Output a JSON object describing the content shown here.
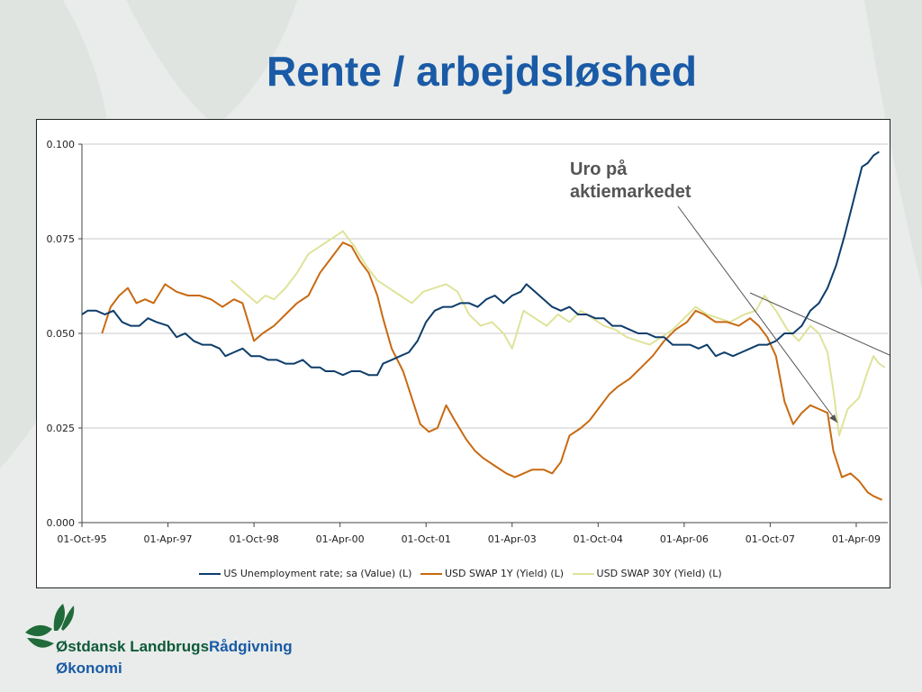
{
  "slide": {
    "title": "Rente / arbejdsløshed",
    "annotation": "Uro på aktiemarkedet",
    "company": {
      "name_part1": "Østdansk Landbrugs",
      "name_part2": "Rådgivning",
      "line2": "Økonomi"
    },
    "colors": {
      "title": "#1a5aa6",
      "company_green": "#0e5a3a",
      "company_blue": "#1a5aa6",
      "logo_green": "#1f6b3a"
    }
  },
  "chart_data": {
    "type": "line",
    "title": "",
    "xlabel": "",
    "ylabel": "",
    "x_tick_labels": [
      "01-Oct-95",
      "01-Apr-97",
      "01-Oct-98",
      "01-Apr-00",
      "01-Oct-01",
      "01-Apr-03",
      "01-Oct-04",
      "01-Apr-06",
      "01-Oct-07",
      "01-Apr-09"
    ],
    "x_tick_years": [
      1995.75,
      1997.25,
      1998.75,
      2000.25,
      2001.75,
      2003.25,
      2004.75,
      2006.25,
      2007.75,
      2009.25
    ],
    "xlim": [
      1995.75,
      2009.8
    ],
    "y_tick_labels": [
      "0.000",
      "0.025",
      "0.050",
      "0.075",
      "0.100"
    ],
    "ylim": [
      0,
      0.1
    ],
    "grid": true,
    "legend_position": "bottom",
    "series": [
      {
        "name": "US Unemployment rate; sa (Value) (L)",
        "color": "#0e3d6b",
        "points": [
          [
            1995.75,
            0.055
          ],
          [
            1995.85,
            0.056
          ],
          [
            1996.0,
            0.056
          ],
          [
            1996.15,
            0.055
          ],
          [
            1996.3,
            0.056
          ],
          [
            1996.45,
            0.053
          ],
          [
            1996.6,
            0.052
          ],
          [
            1996.75,
            0.052
          ],
          [
            1996.9,
            0.054
          ],
          [
            1997.05,
            0.053
          ],
          [
            1997.25,
            0.052
          ],
          [
            1997.4,
            0.049
          ],
          [
            1997.55,
            0.05
          ],
          [
            1997.7,
            0.048
          ],
          [
            1997.85,
            0.047
          ],
          [
            1998.0,
            0.047
          ],
          [
            1998.15,
            0.046
          ],
          [
            1998.25,
            0.044
          ],
          [
            1998.4,
            0.045
          ],
          [
            1998.55,
            0.046
          ],
          [
            1998.7,
            0.044
          ],
          [
            1998.85,
            0.044
          ],
          [
            1999.0,
            0.043
          ],
          [
            1999.15,
            0.043
          ],
          [
            1999.3,
            0.042
          ],
          [
            1999.45,
            0.042
          ],
          [
            1999.6,
            0.043
          ],
          [
            1999.75,
            0.041
          ],
          [
            1999.9,
            0.041
          ],
          [
            2000.0,
            0.04
          ],
          [
            2000.15,
            0.04
          ],
          [
            2000.3,
            0.039
          ],
          [
            2000.45,
            0.04
          ],
          [
            2000.6,
            0.04
          ],
          [
            2000.75,
            0.039
          ],
          [
            2000.9,
            0.039
          ],
          [
            2001.0,
            0.042
          ],
          [
            2001.15,
            0.043
          ],
          [
            2001.3,
            0.044
          ],
          [
            2001.45,
            0.045
          ],
          [
            2001.6,
            0.048
          ],
          [
            2001.75,
            0.053
          ],
          [
            2001.9,
            0.056
          ],
          [
            2002.05,
            0.057
          ],
          [
            2002.2,
            0.057
          ],
          [
            2002.35,
            0.058
          ],
          [
            2002.5,
            0.058
          ],
          [
            2002.65,
            0.057
          ],
          [
            2002.8,
            0.059
          ],
          [
            2002.95,
            0.06
          ],
          [
            2003.1,
            0.058
          ],
          [
            2003.25,
            0.06
          ],
          [
            2003.4,
            0.061
          ],
          [
            2003.5,
            0.063
          ],
          [
            2003.65,
            0.061
          ],
          [
            2003.8,
            0.059
          ],
          [
            2003.95,
            0.057
          ],
          [
            2004.1,
            0.056
          ],
          [
            2004.25,
            0.057
          ],
          [
            2004.4,
            0.055
          ],
          [
            2004.55,
            0.055
          ],
          [
            2004.7,
            0.054
          ],
          [
            2004.85,
            0.054
          ],
          [
            2005.0,
            0.052
          ],
          [
            2005.15,
            0.052
          ],
          [
            2005.3,
            0.051
          ],
          [
            2005.45,
            0.05
          ],
          [
            2005.6,
            0.05
          ],
          [
            2005.75,
            0.049
          ],
          [
            2005.9,
            0.049
          ],
          [
            2006.05,
            0.047
          ],
          [
            2006.2,
            0.047
          ],
          [
            2006.35,
            0.047
          ],
          [
            2006.5,
            0.046
          ],
          [
            2006.65,
            0.047
          ],
          [
            2006.8,
            0.044
          ],
          [
            2006.95,
            0.045
          ],
          [
            2007.1,
            0.044
          ],
          [
            2007.25,
            0.045
          ],
          [
            2007.4,
            0.046
          ],
          [
            2007.55,
            0.047
          ],
          [
            2007.7,
            0.047
          ],
          [
            2007.85,
            0.048
          ],
          [
            2008.0,
            0.05
          ],
          [
            2008.15,
            0.05
          ],
          [
            2008.3,
            0.052
          ],
          [
            2008.45,
            0.056
          ],
          [
            2008.6,
            0.058
          ],
          [
            2008.75,
            0.062
          ],
          [
            2008.9,
            0.068
          ],
          [
            2009.05,
            0.076
          ],
          [
            2009.2,
            0.085
          ],
          [
            2009.35,
            0.094
          ],
          [
            2009.45,
            0.095
          ],
          [
            2009.55,
            0.097
          ],
          [
            2009.65,
            0.098
          ]
        ]
      },
      {
        "name": "USD SWAP 1Y (Yield) (L)",
        "color": "#c86a12",
        "points": [
          [
            1996.1,
            0.05
          ],
          [
            1996.25,
            0.057
          ],
          [
            1996.4,
            0.06
          ],
          [
            1996.55,
            0.062
          ],
          [
            1996.7,
            0.058
          ],
          [
            1996.85,
            0.059
          ],
          [
            1997.0,
            0.058
          ],
          [
            1997.2,
            0.063
          ],
          [
            1997.4,
            0.061
          ],
          [
            1997.6,
            0.06
          ],
          [
            1997.8,
            0.06
          ],
          [
            1998.0,
            0.059
          ],
          [
            1998.2,
            0.057
          ],
          [
            1998.4,
            0.059
          ],
          [
            1998.55,
            0.058
          ],
          [
            1998.75,
            0.048
          ],
          [
            1998.9,
            0.05
          ],
          [
            1999.1,
            0.052
          ],
          [
            1999.3,
            0.055
          ],
          [
            1999.5,
            0.058
          ],
          [
            1999.7,
            0.06
          ],
          [
            1999.9,
            0.066
          ],
          [
            2000.1,
            0.07
          ],
          [
            2000.3,
            0.074
          ],
          [
            2000.45,
            0.073
          ],
          [
            2000.6,
            0.069
          ],
          [
            2000.75,
            0.066
          ],
          [
            2000.9,
            0.06
          ],
          [
            2001.0,
            0.054
          ],
          [
            2001.15,
            0.046
          ],
          [
            2001.35,
            0.04
          ],
          [
            2001.5,
            0.033
          ],
          [
            2001.65,
            0.026
          ],
          [
            2001.8,
            0.024
          ],
          [
            2001.95,
            0.025
          ],
          [
            2002.1,
            0.031
          ],
          [
            2002.25,
            0.027
          ],
          [
            2002.45,
            0.022
          ],
          [
            2002.6,
            0.019
          ],
          [
            2002.75,
            0.017
          ],
          [
            2002.95,
            0.015
          ],
          [
            2003.15,
            0.013
          ],
          [
            2003.3,
            0.012
          ],
          [
            2003.45,
            0.013
          ],
          [
            2003.6,
            0.014
          ],
          [
            2003.8,
            0.014
          ],
          [
            2003.95,
            0.013
          ],
          [
            2004.1,
            0.016
          ],
          [
            2004.25,
            0.023
          ],
          [
            2004.45,
            0.025
          ],
          [
            2004.6,
            0.027
          ],
          [
            2004.75,
            0.03
          ],
          [
            2004.95,
            0.034
          ],
          [
            2005.1,
            0.036
          ],
          [
            2005.3,
            0.038
          ],
          [
            2005.5,
            0.041
          ],
          [
            2005.7,
            0.044
          ],
          [
            2005.9,
            0.048
          ],
          [
            2006.1,
            0.051
          ],
          [
            2006.3,
            0.053
          ],
          [
            2006.45,
            0.056
          ],
          [
            2006.6,
            0.055
          ],
          [
            2006.8,
            0.053
          ],
          [
            2007.0,
            0.053
          ],
          [
            2007.2,
            0.052
          ],
          [
            2007.4,
            0.054
          ],
          [
            2007.55,
            0.052
          ],
          [
            2007.7,
            0.049
          ],
          [
            2007.85,
            0.044
          ],
          [
            2008.0,
            0.032
          ],
          [
            2008.15,
            0.026
          ],
          [
            2008.3,
            0.029
          ],
          [
            2008.45,
            0.031
          ],
          [
            2008.6,
            0.03
          ],
          [
            2008.75,
            0.029
          ],
          [
            2008.85,
            0.019
          ],
          [
            2009.0,
            0.012
          ],
          [
            2009.15,
            0.013
          ],
          [
            2009.3,
            0.011
          ],
          [
            2009.45,
            0.008
          ],
          [
            2009.55,
            0.007
          ],
          [
            2009.7,
            0.006
          ]
        ]
      },
      {
        "name": "USD SWAP 30Y (Yield) (L)",
        "color": "#dfe39a",
        "points": [
          [
            1998.35,
            0.064
          ],
          [
            1998.5,
            0.062
          ],
          [
            1998.65,
            0.06
          ],
          [
            1998.8,
            0.058
          ],
          [
            1998.95,
            0.06
          ],
          [
            1999.1,
            0.059
          ],
          [
            1999.3,
            0.062
          ],
          [
            1999.5,
            0.066
          ],
          [
            1999.7,
            0.071
          ],
          [
            1999.9,
            0.073
          ],
          [
            2000.1,
            0.075
          ],
          [
            2000.3,
            0.077
          ],
          [
            2000.5,
            0.073
          ],
          [
            2000.7,
            0.068
          ],
          [
            2000.9,
            0.064
          ],
          [
            2001.1,
            0.062
          ],
          [
            2001.3,
            0.06
          ],
          [
            2001.5,
            0.058
          ],
          [
            2001.7,
            0.061
          ],
          [
            2001.9,
            0.062
          ],
          [
            2002.1,
            0.063
          ],
          [
            2002.3,
            0.061
          ],
          [
            2002.5,
            0.055
          ],
          [
            2002.7,
            0.052
          ],
          [
            2002.9,
            0.053
          ],
          [
            2003.1,
            0.05
          ],
          [
            2003.25,
            0.046
          ],
          [
            2003.45,
            0.056
          ],
          [
            2003.65,
            0.054
          ],
          [
            2003.85,
            0.052
          ],
          [
            2004.05,
            0.055
          ],
          [
            2004.25,
            0.053
          ],
          [
            2004.45,
            0.056
          ],
          [
            2004.65,
            0.054
          ],
          [
            2004.85,
            0.052
          ],
          [
            2005.05,
            0.051
          ],
          [
            2005.25,
            0.049
          ],
          [
            2005.45,
            0.048
          ],
          [
            2005.65,
            0.047
          ],
          [
            2005.85,
            0.049
          ],
          [
            2006.05,
            0.051
          ],
          [
            2006.25,
            0.054
          ],
          [
            2006.45,
            0.057
          ],
          [
            2006.65,
            0.055
          ],
          [
            2006.85,
            0.054
          ],
          [
            2007.05,
            0.053
          ],
          [
            2007.3,
            0.055
          ],
          [
            2007.5,
            0.056
          ],
          [
            2007.65,
            0.06
          ],
          [
            2007.85,
            0.056
          ],
          [
            2008.05,
            0.051
          ],
          [
            2008.25,
            0.048
          ],
          [
            2008.45,
            0.052
          ],
          [
            2008.6,
            0.05
          ],
          [
            2008.75,
            0.045
          ],
          [
            2008.85,
            0.035
          ],
          [
            2008.95,
            0.023
          ],
          [
            2009.1,
            0.03
          ],
          [
            2009.3,
            0.033
          ],
          [
            2009.45,
            0.04
          ],
          [
            2009.55,
            0.044
          ],
          [
            2009.65,
            0.042
          ],
          [
            2009.75,
            0.041
          ]
        ]
      }
    ]
  }
}
